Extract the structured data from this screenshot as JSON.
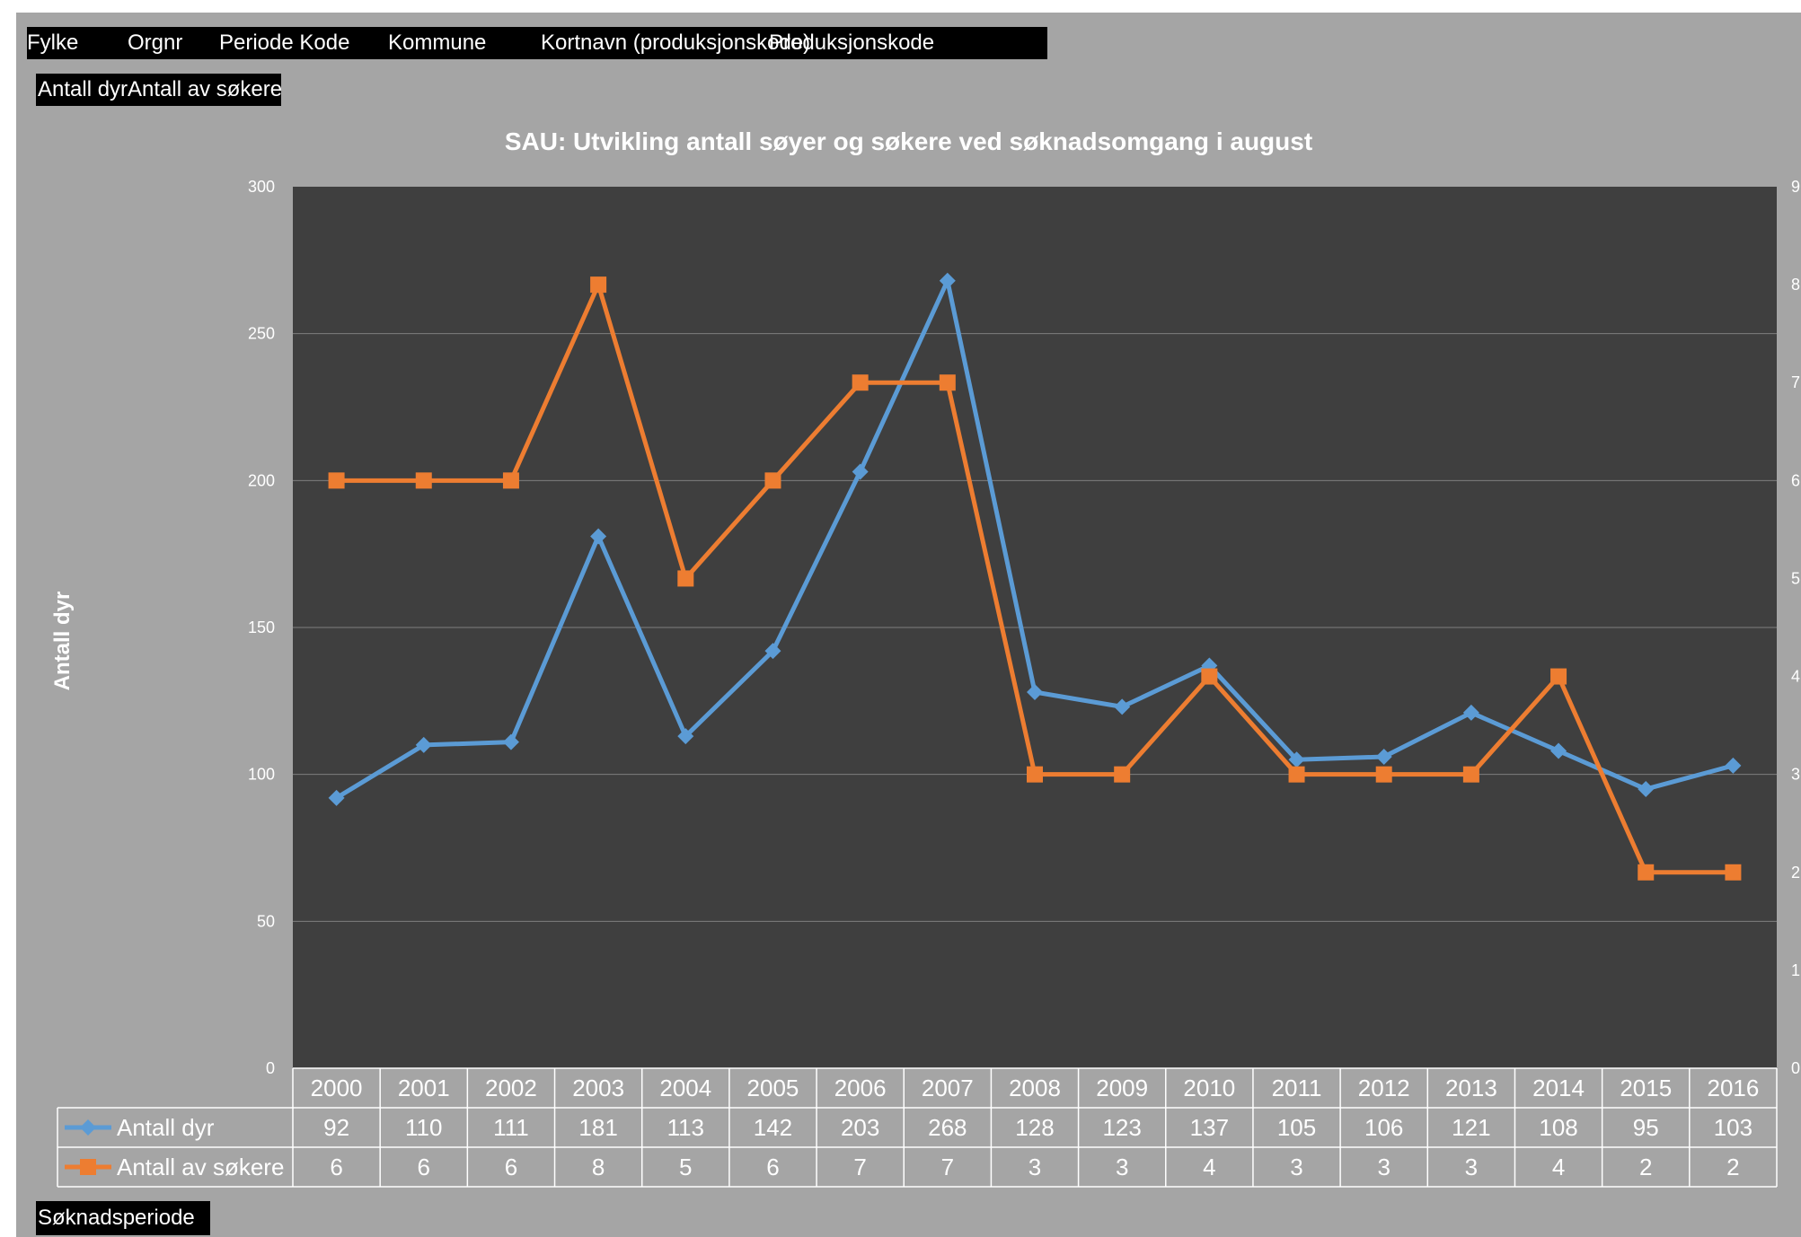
{
  "field_bar": {
    "fields": [
      "Fylke",
      "Orgnr",
      "Periode Kode",
      "Kommune",
      "Kortnavn (produksjonskode)",
      "Produksjonskode"
    ]
  },
  "value_fields": "Antall dyrAntall av søkere",
  "axis_field": "Søknadsperiode",
  "colors": {
    "background": "#a5a5a5",
    "plot_area": "#3f3f3f",
    "series_dyr": "#5b9bd5",
    "series_sokere": "#ed7d31"
  },
  "chart_data": {
    "type": "line",
    "title": "SAU: Utvikling antall søyer og søkere ved søknadsomgang i august",
    "ylabel": "Antall dyr",
    "y2label": "",
    "ylim": [
      0,
      300
    ],
    "y2lim": [
      0,
      9
    ],
    "yticks": [
      "0",
      "50",
      "100",
      "150",
      "200",
      "250",
      "300"
    ],
    "y2ticks": [
      "0",
      "1",
      "2",
      "3",
      "4",
      "5",
      "6",
      "7",
      "8",
      "9"
    ],
    "grid": true,
    "legend": "data-table",
    "categories": [
      "2000",
      "2001",
      "2002",
      "2003",
      "2004",
      "2005",
      "2006",
      "2007",
      "2008",
      "2009",
      "2010",
      "2011",
      "2012",
      "2013",
      "2014",
      "2015",
      "2016"
    ],
    "series": [
      {
        "name": "Antall dyr",
        "axis": "left",
        "marker": "diamond",
        "values": [
          92,
          110,
          111,
          181,
          113,
          142,
          203,
          268,
          128,
          123,
          137,
          105,
          106,
          121,
          108,
          95,
          103
        ]
      },
      {
        "name": "Antall av søkere",
        "axis": "right",
        "marker": "square",
        "values": [
          6,
          6,
          6,
          8,
          5,
          6,
          7,
          7,
          3,
          3,
          4,
          3,
          3,
          3,
          4,
          2,
          2
        ]
      }
    ]
  }
}
